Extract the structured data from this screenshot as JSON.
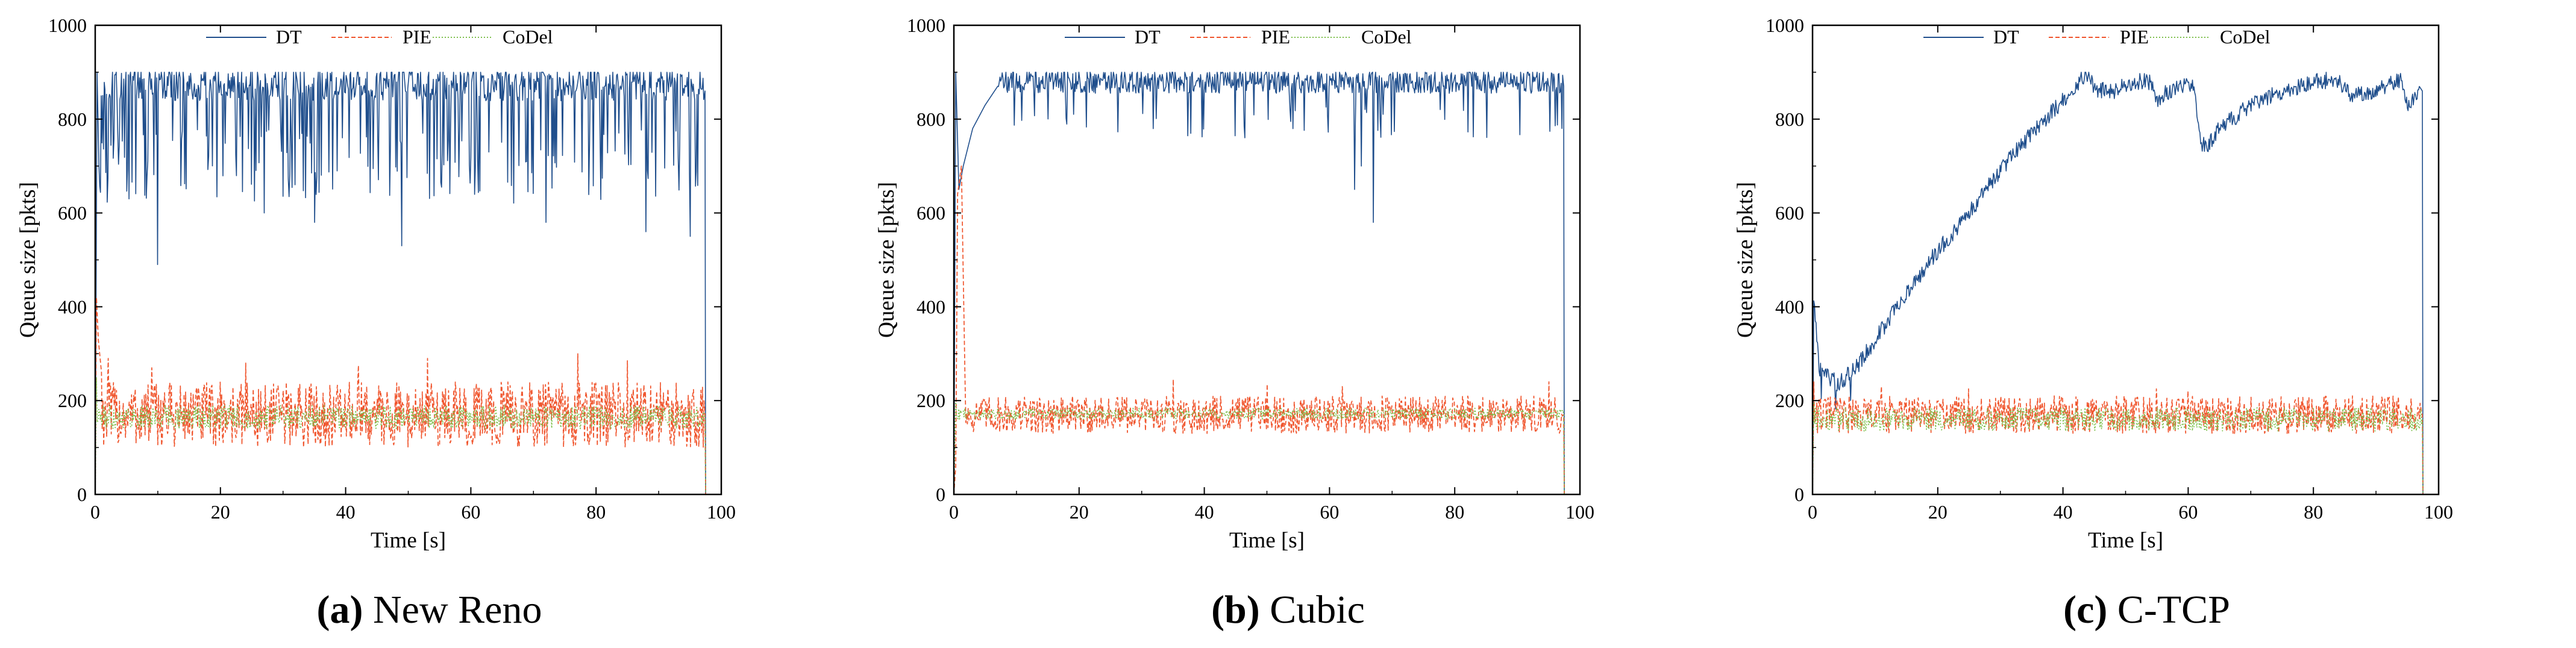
{
  "colors": {
    "dt": "#1f4e8c",
    "pie": "#f0552d",
    "codel": "#7cbf4a",
    "axis": "#000000"
  },
  "legend_labels": {
    "dt": "DT",
    "pie": "PIE",
    "codel": "CoDel"
  },
  "chart_data": [
    {
      "id": "a",
      "type": "line",
      "caption_tag": "(a)",
      "caption_text": "New Reno",
      "xlabel": "Time [s]",
      "ylabel": "Queue size [pkts]",
      "xlim": [
        0,
        100
      ],
      "ylim": [
        0,
        1000
      ],
      "xticks": [
        0,
        20,
        40,
        60,
        80,
        100
      ],
      "yticks": [
        0,
        200,
        400,
        600,
        800,
        1000
      ],
      "series": [
        {
          "name": "DT",
          "style": "solid",
          "pattern": "saw",
          "start": [
            [
              0,
              0
            ],
            [
              0.3,
              900
            ],
            [
              0.6,
              700
            ]
          ],
          "center": 860,
          "amplitude": 35,
          "dips": [
            [
              10,
              490
            ],
            [
              27,
              600
            ],
            [
              35,
              580
            ],
            [
              49,
              530
            ],
            [
              72,
              580
            ],
            [
              88,
              560
            ],
            [
              95,
              550
            ]
          ],
          "dipRate": 0.22,
          "dipLow": 620,
          "dipHigh": 780,
          "end": [
            97.5,
            0
          ],
          "tEnd": 97.5
        },
        {
          "name": "PIE",
          "style": "dashed",
          "pattern": "noise",
          "start": [
            [
              0,
              0
            ],
            [
              0.2,
              420
            ],
            [
              0.5,
              330
            ],
            [
              1,
              260
            ]
          ],
          "center": 170,
          "amplitude": 70,
          "spikes": [
            [
              2,
              290
            ],
            [
              9,
              270
            ],
            [
              24,
              280
            ],
            [
              42,
              275
            ],
            [
              53,
              290
            ],
            [
              77,
              300
            ],
            [
              85,
              285
            ]
          ],
          "end": [
            97.5,
            0
          ],
          "tEnd": 97.5
        },
        {
          "name": "CoDel",
          "style": "dotted",
          "pattern": "noise",
          "start": [
            [
              0,
              0
            ],
            [
              0.2,
              250
            ]
          ],
          "center": 165,
          "amplitude": 25,
          "end": [
            97.5,
            0
          ],
          "tEnd": 97.5
        }
      ]
    },
    {
      "id": "b",
      "type": "line",
      "caption_tag": "(b)",
      "caption_text": "Cubic",
      "xlabel": "Time [s]",
      "ylabel": "Queue size [pkts]",
      "xlim": [
        0,
        100
      ],
      "ylim": [
        0,
        1000
      ],
      "xticks": [
        0,
        20,
        40,
        60,
        80,
        100
      ],
      "yticks": [
        0,
        200,
        400,
        600,
        800,
        1000
      ],
      "series": [
        {
          "name": "DT",
          "style": "solid",
          "pattern": "saw",
          "start": [
            [
              0,
              0
            ],
            [
              0.3,
              900
            ],
            [
              0.8,
              650
            ],
            [
              1.5,
              700
            ],
            [
              3,
              780
            ],
            [
              5,
              830
            ],
            [
              7,
              870
            ]
          ],
          "center": 870,
          "amplitude": 25,
          "dips": [
            [
              64,
              650
            ],
            [
              65,
              700
            ],
            [
              67,
              580
            ],
            [
              68,
              800
            ]
          ],
          "dipRate": 0.07,
          "dipLow": 760,
          "dipHigh": 830,
          "end": [
            97.5,
            0
          ],
          "tEnd": 97.5
        },
        {
          "name": "PIE",
          "style": "dashed",
          "pattern": "noise",
          "start": [
            [
              0,
              0
            ],
            [
              0.3,
              60
            ],
            [
              0.6,
              640
            ],
            [
              1.2,
              700
            ],
            [
              1.8,
              230
            ]
          ],
          "center": 170,
          "amplitude": 40,
          "spikes": [
            [
              35,
              245
            ],
            [
              50,
              235
            ],
            [
              62,
              230
            ],
            [
              95,
              240
            ]
          ],
          "end": [
            97.5,
            0
          ],
          "tEnd": 97.5
        },
        {
          "name": "CoDel",
          "style": "dotted",
          "pattern": "noise",
          "start": [
            [
              0,
              0
            ],
            [
              0.3,
              200
            ]
          ],
          "center": 172,
          "amplitude": 12,
          "end": [
            97.5,
            0
          ],
          "tEnd": 97.5
        }
      ]
    },
    {
      "id": "c",
      "type": "line",
      "caption_tag": "(c)",
      "caption_text": "C-TCP",
      "xlabel": "Time [s]",
      "ylabel": "Queue size [pkts]",
      "xlim": [
        0,
        100
      ],
      "ylim": [
        0,
        1000
      ],
      "xticks": [
        0,
        20,
        40,
        60,
        80,
        100
      ],
      "yticks": [
        0,
        200,
        400,
        600,
        800,
        1000
      ],
      "series": [
        {
          "name": "DT",
          "style": "solid",
          "pattern": "trend",
          "trend": [
            [
              0,
              0
            ],
            [
              0.2,
              420
            ],
            [
              1,
              270
            ],
            [
              4,
              235
            ],
            [
              7,
              270
            ],
            [
              10,
              330
            ],
            [
              15,
              430
            ],
            [
              20,
              520
            ],
            [
              25,
              600
            ],
            [
              30,
              690
            ],
            [
              35,
              770
            ],
            [
              40,
              840
            ],
            [
              44,
              900
            ],
            [
              45,
              865
            ],
            [
              48,
              860
            ],
            [
              52,
              880
            ],
            [
              54,
              880
            ],
            [
              55,
              840
            ],
            [
              58,
              870
            ],
            [
              61,
              870
            ],
            [
              62,
              750
            ],
            [
              63,
              740
            ],
            [
              65,
              780
            ],
            [
              70,
              830
            ],
            [
              75,
              860
            ],
            [
              80,
              880
            ],
            [
              84,
              885
            ],
            [
              86,
              850
            ],
            [
              90,
              860
            ],
            [
              94,
              885
            ],
            [
              95,
              830
            ],
            [
              97,
              860
            ],
            [
              97.5,
              0
            ]
          ],
          "amplitude": 18,
          "tEnd": 97.5
        },
        {
          "name": "PIE",
          "style": "dashed",
          "pattern": "noise",
          "start": [
            [
              0,
              0
            ],
            [
              0.2,
              240
            ]
          ],
          "center": 170,
          "amplitude": 40,
          "spikes": [
            [
              11,
              230
            ],
            [
              25,
              225
            ],
            [
              55,
              225
            ],
            [
              60,
              220
            ]
          ],
          "end": [
            97.5,
            0
          ],
          "tEnd": 97.5
        },
        {
          "name": "CoDel",
          "style": "dotted",
          "pattern": "noise",
          "start": [
            [
              0,
              0
            ],
            [
              0.2,
              200
            ]
          ],
          "center": 160,
          "amplitude": 25,
          "end": [
            97.5,
            0
          ],
          "tEnd": 97.5
        }
      ]
    }
  ]
}
